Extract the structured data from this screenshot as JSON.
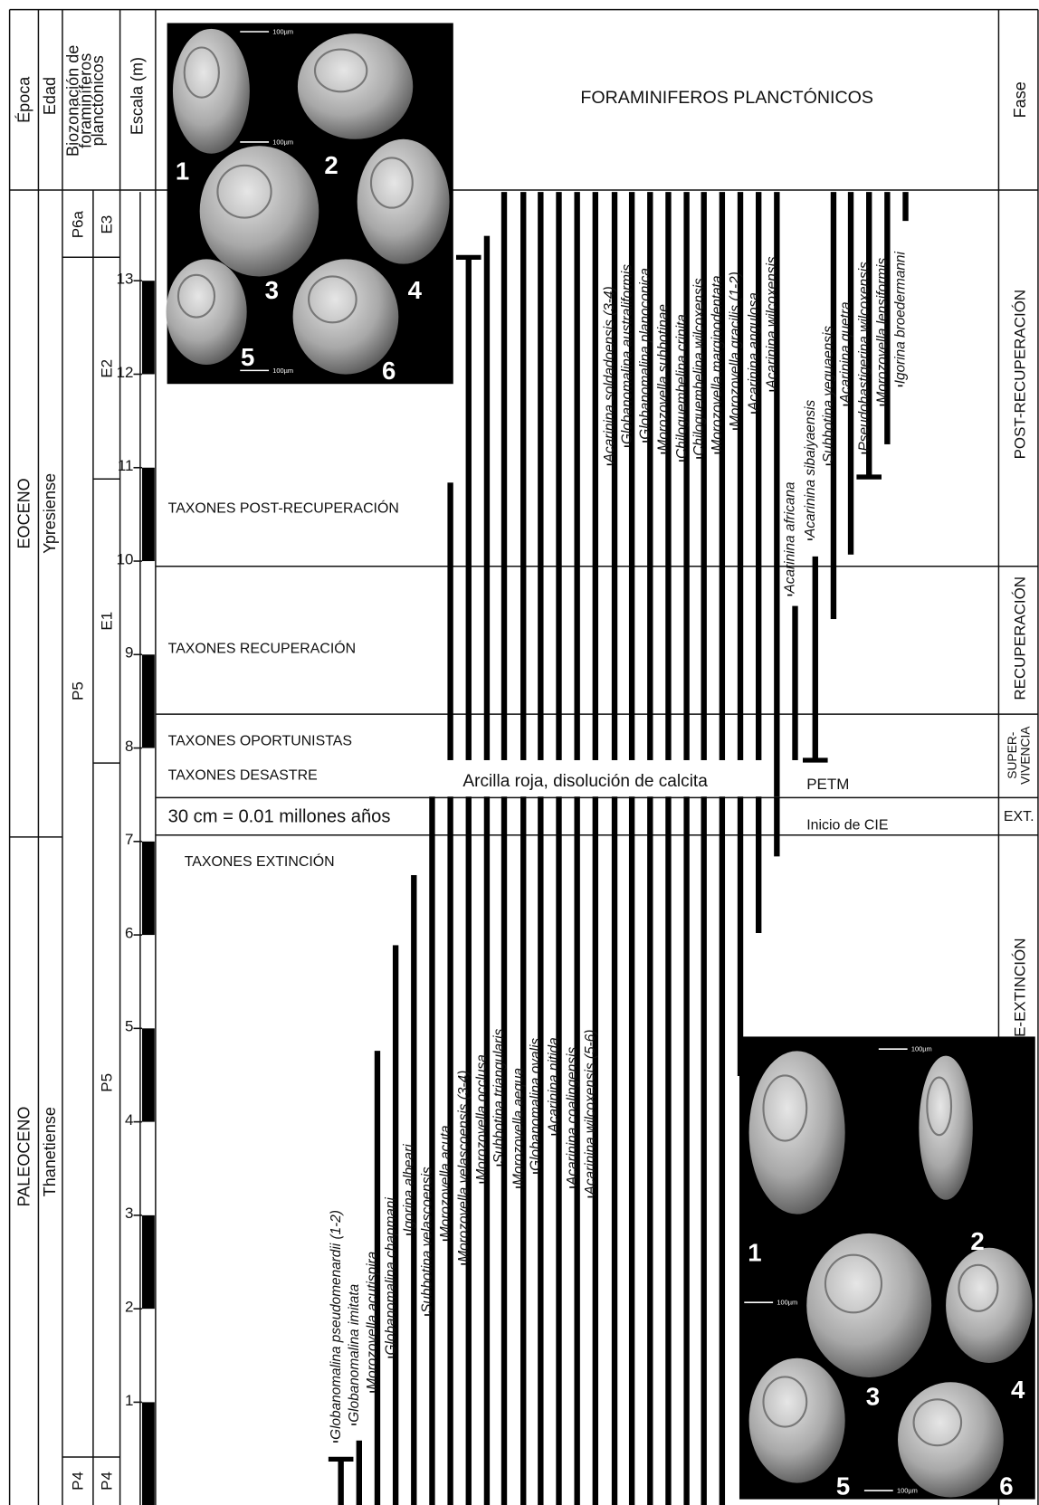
{
  "header": {
    "epoch": "Época",
    "age": "Edad",
    "biozone": [
      "Biozonación de",
      "foraminíferos",
      "planctónicos"
    ],
    "scale": "Escala (m)",
    "title": "FORAMINIFEROS PLANCTÓNICOS",
    "phase": "Fase"
  },
  "epochs": [
    "EOCENO",
    "PALEOCENO"
  ],
  "ages": [
    "Ypresiense",
    "Thanetiense"
  ],
  "zones_p": [
    "P6a",
    "P5",
    "P4"
  ],
  "zones_e": [
    "E3",
    "E2",
    "E1",
    "P5",
    "P4"
  ],
  "scale": {
    "min": -0.1,
    "max": 13.95,
    "ticks": [
      1,
      2,
      3,
      4,
      5,
      6,
      7,
      8,
      9,
      10,
      11,
      12,
      13
    ]
  },
  "phases": {
    "post": "POST-RECUPERACIÓN",
    "recovery": "RECUPERACIÓN",
    "survival": [
      "SUPER-",
      "VIVENCIA"
    ],
    "extinction": "EXT.",
    "pre": "PRE-EXTINCIÓN"
  },
  "groups": {
    "post": "TAXONES POST-RECUPERACIÓN",
    "recovery": "TAXONES RECUPERACIÓN",
    "opportunist": "TAXONES OPORTUNISTAS",
    "disaster": "TAXONES DESASTRE",
    "extinction": "TAXONES EXTINCIÓN"
  },
  "notes": {
    "time": "30 cm = 0.01 millones años",
    "clay": "Arcilla roja, disolución de calcita",
    "petm": "PETM",
    "cie": "Inicio de CIE"
  },
  "ranges": [
    {
      "top": 10.84,
      "base": 7.87
    },
    {
      "top": 13.25,
      "base": 7.87
    },
    {
      "top": 13.48,
      "base": 7.87
    },
    {
      "top": 13.95,
      "base": 7.87
    },
    {
      "top": 13.95,
      "base": 7.87
    },
    {
      "top": 13.95,
      "base": 7.87
    },
    {
      "top": 13.95,
      "base": 7.87
    },
    {
      "top": 13.95,
      "base": 7.87
    },
    {
      "top": 13.95,
      "base": 7.87
    },
    {
      "name": "Acarinina soldadoensis (3-4)",
      "top": 13.95,
      "base": 7.87
    },
    {
      "name": "Globanomalina australiformis",
      "top": 13.95,
      "base": 7.87
    },
    {
      "name": "Globanomalina planoconica",
      "top": 13.95,
      "base": 7.87
    },
    {
      "name": "Morozovella subbotinae",
      "top": 13.95,
      "base": 7.87
    },
    {
      "name": "Chiloguembelina crinita",
      "top": 13.95,
      "base": 7.87
    },
    {
      "name": "Chiloguembelina wilcoxensis",
      "top": 13.95,
      "base": 7.87
    },
    {
      "name": "Morozovella marginodentata",
      "top": 13.95,
      "base": 7.87
    },
    {
      "name": "Morozovella gracilis (1-2)",
      "top": 13.95,
      "base": 7.87
    },
    {
      "name": "Acarinina angulosa",
      "top": 13.95,
      "base": 7.87
    },
    {
      "name": "Acarinina wilcoxensis",
      "top": 13.95,
      "base": 7.48
    },
    {
      "name": "Acarinina africana",
      "top": 9.52,
      "base": 7.87
    },
    {
      "name": "Acarinina sibaiyaensis",
      "top": 10.05,
      "base": 7.87
    },
    {
      "name": "Subbotina yeguaensis",
      "top": 13.95,
      "base": 9.38
    },
    {
      "name": "Acarinina quetra",
      "top": 13.95,
      "base": 10.07
    },
    {
      "name": "Pseudohastigerina wilcoxensis",
      "top": 13.95,
      "base": 10.9
    },
    {
      "name": "Morozovella lensiformis",
      "top": 13.95,
      "base": 11.25
    },
    {
      "name": "Igorina broedermanni",
      "top": 13.95,
      "base": 13.64
    },
    {
      "name": "Globanomalina pseudomenardii (1-2)",
      "top": 0.39,
      "base": -0.1
    },
    {
      "name": "Globanomalina imitata",
      "top": 0.59,
      "base": -0.1
    },
    {
      "name": "Morozovella acutispira",
      "top": 4.76,
      "base": -0.1
    },
    {
      "name": "Globanomalina chapmani",
      "top": 5.89,
      "base": -0.1
    },
    {
      "name": "Igorina albeari",
      "top": 6.64,
      "base": -0.1
    },
    {
      "name": "Subbotina velascoensis",
      "top": 7.48,
      "base": -0.1
    },
    {
      "name": "Morozovella acuta",
      "top": 7.48,
      "base": -0.1
    },
    {
      "name": "Morozovella velascoensis (3-4)",
      "top": 7.48,
      "base": -0.1
    },
    {
      "name": "Morozovella occlusa",
      "top": 7.48,
      "base": -0.1
    },
    {
      "name": "Subbotina triangularis",
      "top": 7.48,
      "base": -0.1
    },
    {
      "name": "Morozovella aequa",
      "top": 7.48,
      "base": -0.1
    },
    {
      "name": "Globanomalina ovalis",
      "top": 7.48,
      "base": -0.1
    },
    {
      "name": "Acarinina nitida",
      "top": 7.48,
      "base": -0.1
    },
    {
      "name": "Acarinina coalingensis",
      "top": 7.48,
      "base": -0.1
    },
    {
      "name": "Acarinina wilcoxensis (5-6)",
      "top": 7.48,
      "base": -0.1
    },
    {
      "top": 7.48,
      "base": -0.1
    },
    {
      "top": 7.48,
      "base": -0.1
    },
    {
      "top": 7.48,
      "base": -0.1
    },
    {
      "top": 7.48,
      "base": -0.1
    },
    {
      "top": 7.48,
      "base": -0.1
    },
    {
      "top": 7.48,
      "base": -0.1
    },
    {
      "top": 7.48,
      "base": -0.1
    },
    {
      "top": 7.48,
      "base": 4.49
    },
    {
      "top": 7.48,
      "base": 6.02
    },
    {
      "top": 7.48,
      "base": 6.84
    }
  ],
  "photos": [
    {
      "numbers": [
        "1",
        "2",
        "3",
        "4",
        "5",
        "6"
      ],
      "scale_label": "100µm"
    },
    {
      "numbers": [
        "1",
        "2",
        "3",
        "4",
        "5",
        "6"
      ],
      "scale_label": "100µm"
    }
  ]
}
